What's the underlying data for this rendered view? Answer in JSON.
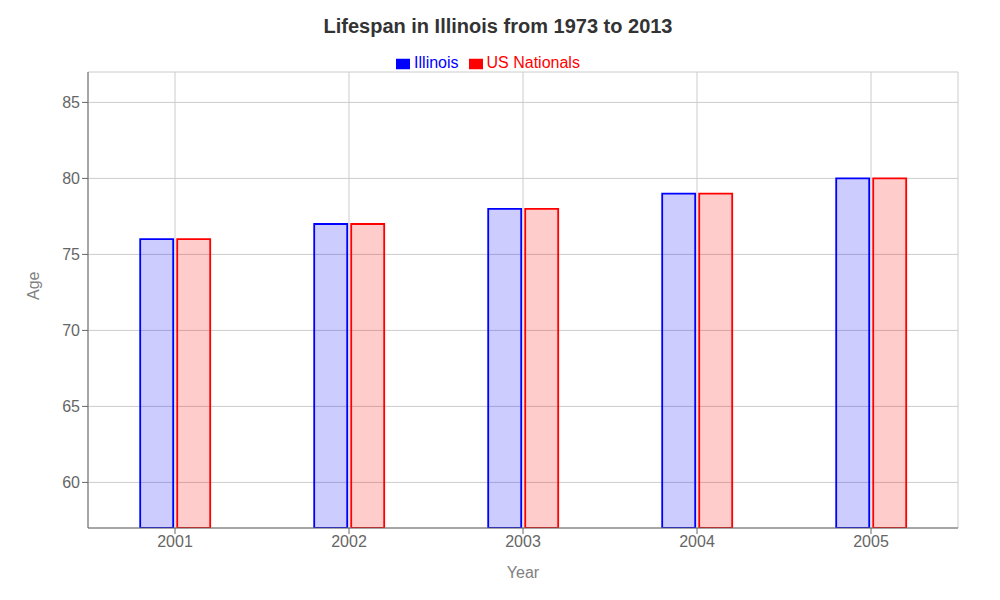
{
  "chart_data": {
    "type": "bar",
    "title": "Lifespan in Illinois from 1973 to 2013",
    "xlabel": "Year",
    "ylabel": "Age",
    "categories": [
      "2001",
      "2002",
      "2003",
      "2004",
      "2005"
    ],
    "series": [
      {
        "name": "Illinois",
        "color": "#0000ff",
        "values": [
          76,
          77,
          78,
          79,
          80
        ]
      },
      {
        "name": "US Nationals",
        "color": "#ff0000",
        "values": [
          76,
          77,
          78,
          79,
          80
        ]
      }
    ],
    "ylim": [
      57,
      87
    ],
    "yticks": [
      60,
      65,
      70,
      75,
      80,
      85
    ],
    "grid": true,
    "legend": "top"
  }
}
